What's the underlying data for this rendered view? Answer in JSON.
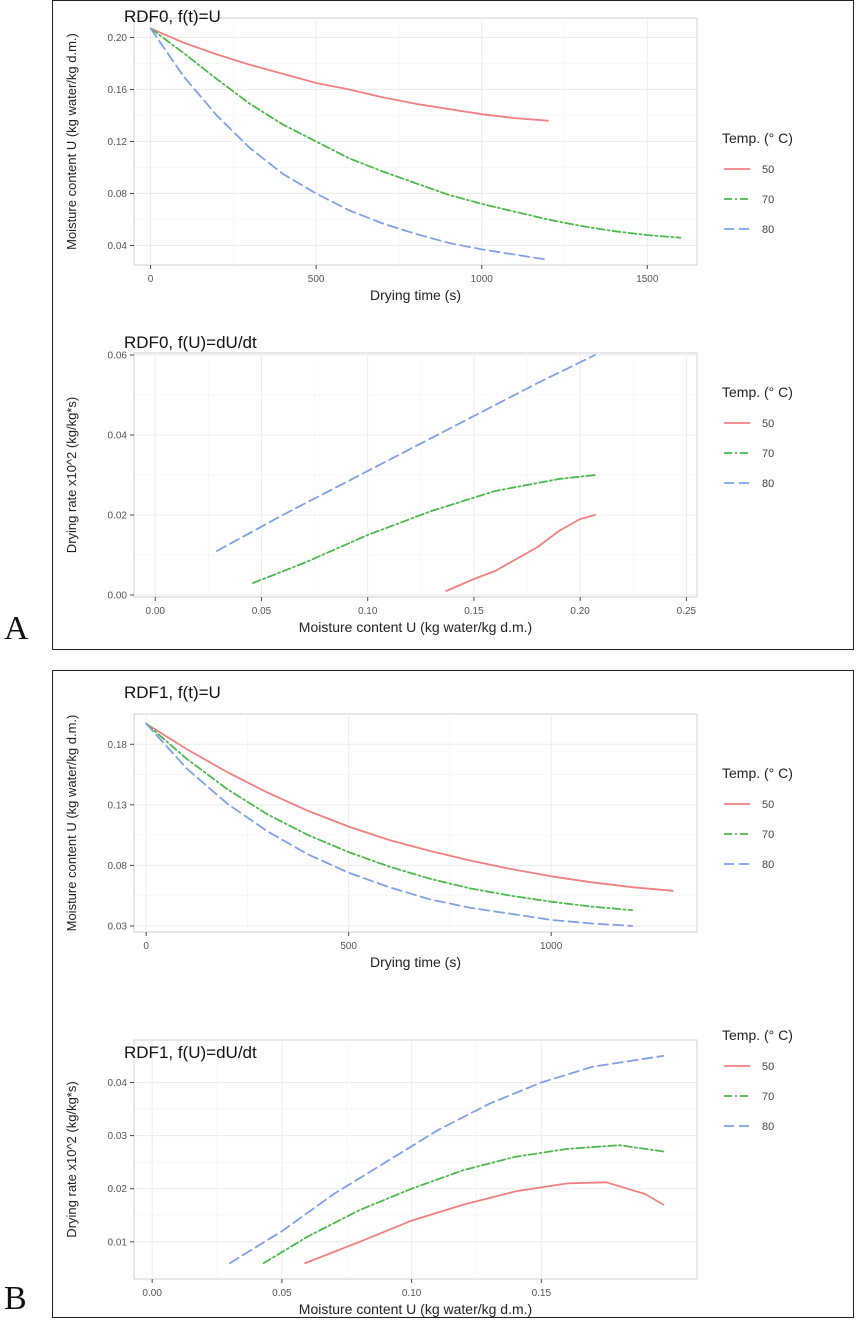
{
  "figure": {
    "panels": [
      {
        "letter": "A"
      },
      {
        "letter": "B"
      }
    ]
  },
  "colors": {
    "T50": "#f07f7f",
    "T70": "#4cb84c",
    "T80": "#7f9fe6"
  },
  "chart_data": [
    {
      "type": "line",
      "title": "RDF0, f(t)=U",
      "xlabel": "Drying time (s)",
      "ylabel": "Moisture content U (kg water/kg d.m.)",
      "xlim": [
        -50,
        1650
      ],
      "ylim": [
        0.025,
        0.215
      ],
      "xticks": [
        0,
        500,
        1000,
        1500
      ],
      "xtick_labels": [
        "0",
        "500",
        "1000",
        "1500"
      ],
      "yticks": [
        0.04,
        0.08,
        0.12,
        0.16,
        0.2
      ],
      "ytick_labels": [
        "0.04",
        "0.08",
        "0.12",
        "0.16",
        "0.20"
      ],
      "legend": {
        "title": "Temp. (° C)",
        "position": "right"
      },
      "grid": true,
      "series": [
        {
          "name": "50",
          "key": "T50",
          "dash": "",
          "x": [
            0,
            100,
            200,
            300,
            400,
            500,
            600,
            700,
            800,
            900,
            1000,
            1100,
            1200
          ],
          "y": [
            0.207,
            0.196,
            0.187,
            0.179,
            0.172,
            0.165,
            0.16,
            0.154,
            0.149,
            0.145,
            0.141,
            0.138,
            0.136
          ]
        },
        {
          "name": "70",
          "key": "T70",
          "dash": "8 3 2 3",
          "x": [
            0,
            100,
            200,
            300,
            400,
            500,
            600,
            700,
            800,
            900,
            1000,
            1100,
            1200,
            1300,
            1400,
            1500,
            1600
          ],
          "y": [
            0.207,
            0.188,
            0.168,
            0.149,
            0.133,
            0.12,
            0.107,
            0.097,
            0.088,
            0.079,
            0.072,
            0.066,
            0.06,
            0.055,
            0.051,
            0.048,
            0.046
          ]
        },
        {
          "name": "80",
          "key": "T80",
          "dash": "10 5",
          "x": [
            0,
            100,
            200,
            300,
            400,
            500,
            600,
            700,
            800,
            900,
            1000,
            1100,
            1200
          ],
          "y": [
            0.207,
            0.17,
            0.14,
            0.115,
            0.095,
            0.08,
            0.067,
            0.057,
            0.049,
            0.042,
            0.037,
            0.033,
            0.029
          ]
        }
      ]
    },
    {
      "type": "line",
      "title": "RDF0, f(U)=dU/dt",
      "xlabel": "Moisture content U (kg water/kg d.m.)",
      "ylabel": "Drying rate x10^2 (kg/kg*s)",
      "xlim": [
        -0.01,
        0.255
      ],
      "ylim": [
        -0.0005,
        0.0605
      ],
      "xticks": [
        0.0,
        0.05,
        0.1,
        0.15,
        0.2,
        0.25
      ],
      "xtick_labels": [
        "0.00",
        "0.05",
        "0.10",
        "0.15",
        "0.20",
        "0.25"
      ],
      "yticks": [
        0.0,
        0.02,
        0.04,
        0.06
      ],
      "ytick_labels": [
        "0.00",
        "0.02",
        "0.04",
        "0.06"
      ],
      "legend": {
        "title": "Temp. (° C)",
        "position": "right"
      },
      "grid": true,
      "series": [
        {
          "name": "50",
          "key": "T50",
          "dash": "",
          "x": [
            0.137,
            0.15,
            0.16,
            0.17,
            0.18,
            0.19,
            0.2,
            0.207
          ],
          "y": [
            0.001,
            0.004,
            0.006,
            0.009,
            0.012,
            0.016,
            0.019,
            0.02
          ]
        },
        {
          "name": "70",
          "key": "T70",
          "dash": "8 3 2 3",
          "x": [
            0.046,
            0.07,
            0.1,
            0.13,
            0.16,
            0.19,
            0.207
          ],
          "y": [
            0.003,
            0.008,
            0.015,
            0.021,
            0.026,
            0.029,
            0.03
          ]
        },
        {
          "name": "80",
          "key": "T80",
          "dash": "10 5",
          "x": [
            0.029,
            0.06,
            0.1,
            0.14,
            0.18,
            0.207
          ],
          "y": [
            0.011,
            0.02,
            0.031,
            0.042,
            0.053,
            0.06
          ]
        }
      ]
    },
    {
      "type": "line",
      "title": "RDF1, f(t)=U",
      "xlabel": "Drying time (s)",
      "ylabel": "Moisture content U (kg water/kg d.m.)",
      "xlim": [
        -30,
        1360
      ],
      "ylim": [
        0.025,
        0.205
      ],
      "xticks": [
        0,
        500,
        1000
      ],
      "xtick_labels": [
        "0",
        "500",
        "1000"
      ],
      "yticks": [
        0.03,
        0.08,
        0.13,
        0.18
      ],
      "ytick_labels": [
        "0.03",
        "0.08",
        "0.13",
        "0.18"
      ],
      "legend": {
        "title": "Temp. (° C)",
        "position": "right"
      },
      "grid": true,
      "series": [
        {
          "name": "50",
          "key": "T50",
          "dash": "",
          "x": [
            0,
            100,
            200,
            300,
            400,
            500,
            600,
            700,
            800,
            900,
            1000,
            1100,
            1200,
            1300
          ],
          "y": [
            0.197,
            0.176,
            0.157,
            0.14,
            0.125,
            0.112,
            0.101,
            0.092,
            0.084,
            0.077,
            0.071,
            0.066,
            0.062,
            0.059
          ]
        },
        {
          "name": "70",
          "key": "T70",
          "dash": "8 3 2 3",
          "x": [
            0,
            100,
            200,
            300,
            400,
            500,
            600,
            700,
            800,
            900,
            1000,
            1100,
            1200
          ],
          "y": [
            0.197,
            0.168,
            0.143,
            0.122,
            0.105,
            0.091,
            0.079,
            0.069,
            0.061,
            0.055,
            0.05,
            0.046,
            0.043
          ]
        },
        {
          "name": "80",
          "key": "T80",
          "dash": "10 5",
          "x": [
            0,
            100,
            200,
            300,
            400,
            500,
            600,
            700,
            800,
            900,
            1000,
            1100,
            1200
          ],
          "y": [
            0.197,
            0.16,
            0.131,
            0.108,
            0.089,
            0.074,
            0.062,
            0.052,
            0.045,
            0.04,
            0.035,
            0.032,
            0.03
          ]
        }
      ]
    },
    {
      "type": "line",
      "title": "RDF1, f(U)=dU/dt",
      "xlabel": "Moisture content U (kg water/kg d.m.)",
      "ylabel": "Drying rate x10^2 (kg/kg*s)",
      "xlim": [
        -0.007,
        0.21
      ],
      "ylim": [
        0.003,
        0.048
      ],
      "xticks": [
        0.0,
        0.05,
        0.1,
        0.15
      ],
      "xtick_labels": [
        "0.00",
        "0.05",
        "0.10",
        "0.15"
      ],
      "yticks": [
        0.01,
        0.02,
        0.03,
        0.04
      ],
      "ytick_labels": [
        "0.01",
        "0.02",
        "0.03",
        "0.04"
      ],
      "legend": {
        "title": "Temp. (° C)",
        "position": "right"
      },
      "grid": true,
      "series": [
        {
          "name": "50",
          "key": "T50",
          "dash": "",
          "x": [
            0.059,
            0.08,
            0.1,
            0.12,
            0.14,
            0.16,
            0.175,
            0.19,
            0.197
          ],
          "y": [
            0.006,
            0.01,
            0.014,
            0.017,
            0.0195,
            0.021,
            0.0212,
            0.019,
            0.017
          ]
        },
        {
          "name": "70",
          "key": "T70",
          "dash": "8 3 2 3",
          "x": [
            0.043,
            0.06,
            0.08,
            0.1,
            0.12,
            0.14,
            0.16,
            0.18,
            0.197
          ],
          "y": [
            0.006,
            0.011,
            0.016,
            0.02,
            0.0235,
            0.026,
            0.0275,
            0.0282,
            0.027
          ]
        },
        {
          "name": "80",
          "key": "T80",
          "dash": "10 5",
          "x": [
            0.03,
            0.05,
            0.07,
            0.09,
            0.11,
            0.13,
            0.15,
            0.17,
            0.197
          ],
          "y": [
            0.006,
            0.012,
            0.019,
            0.025,
            0.031,
            0.036,
            0.04,
            0.043,
            0.045
          ]
        }
      ]
    }
  ]
}
